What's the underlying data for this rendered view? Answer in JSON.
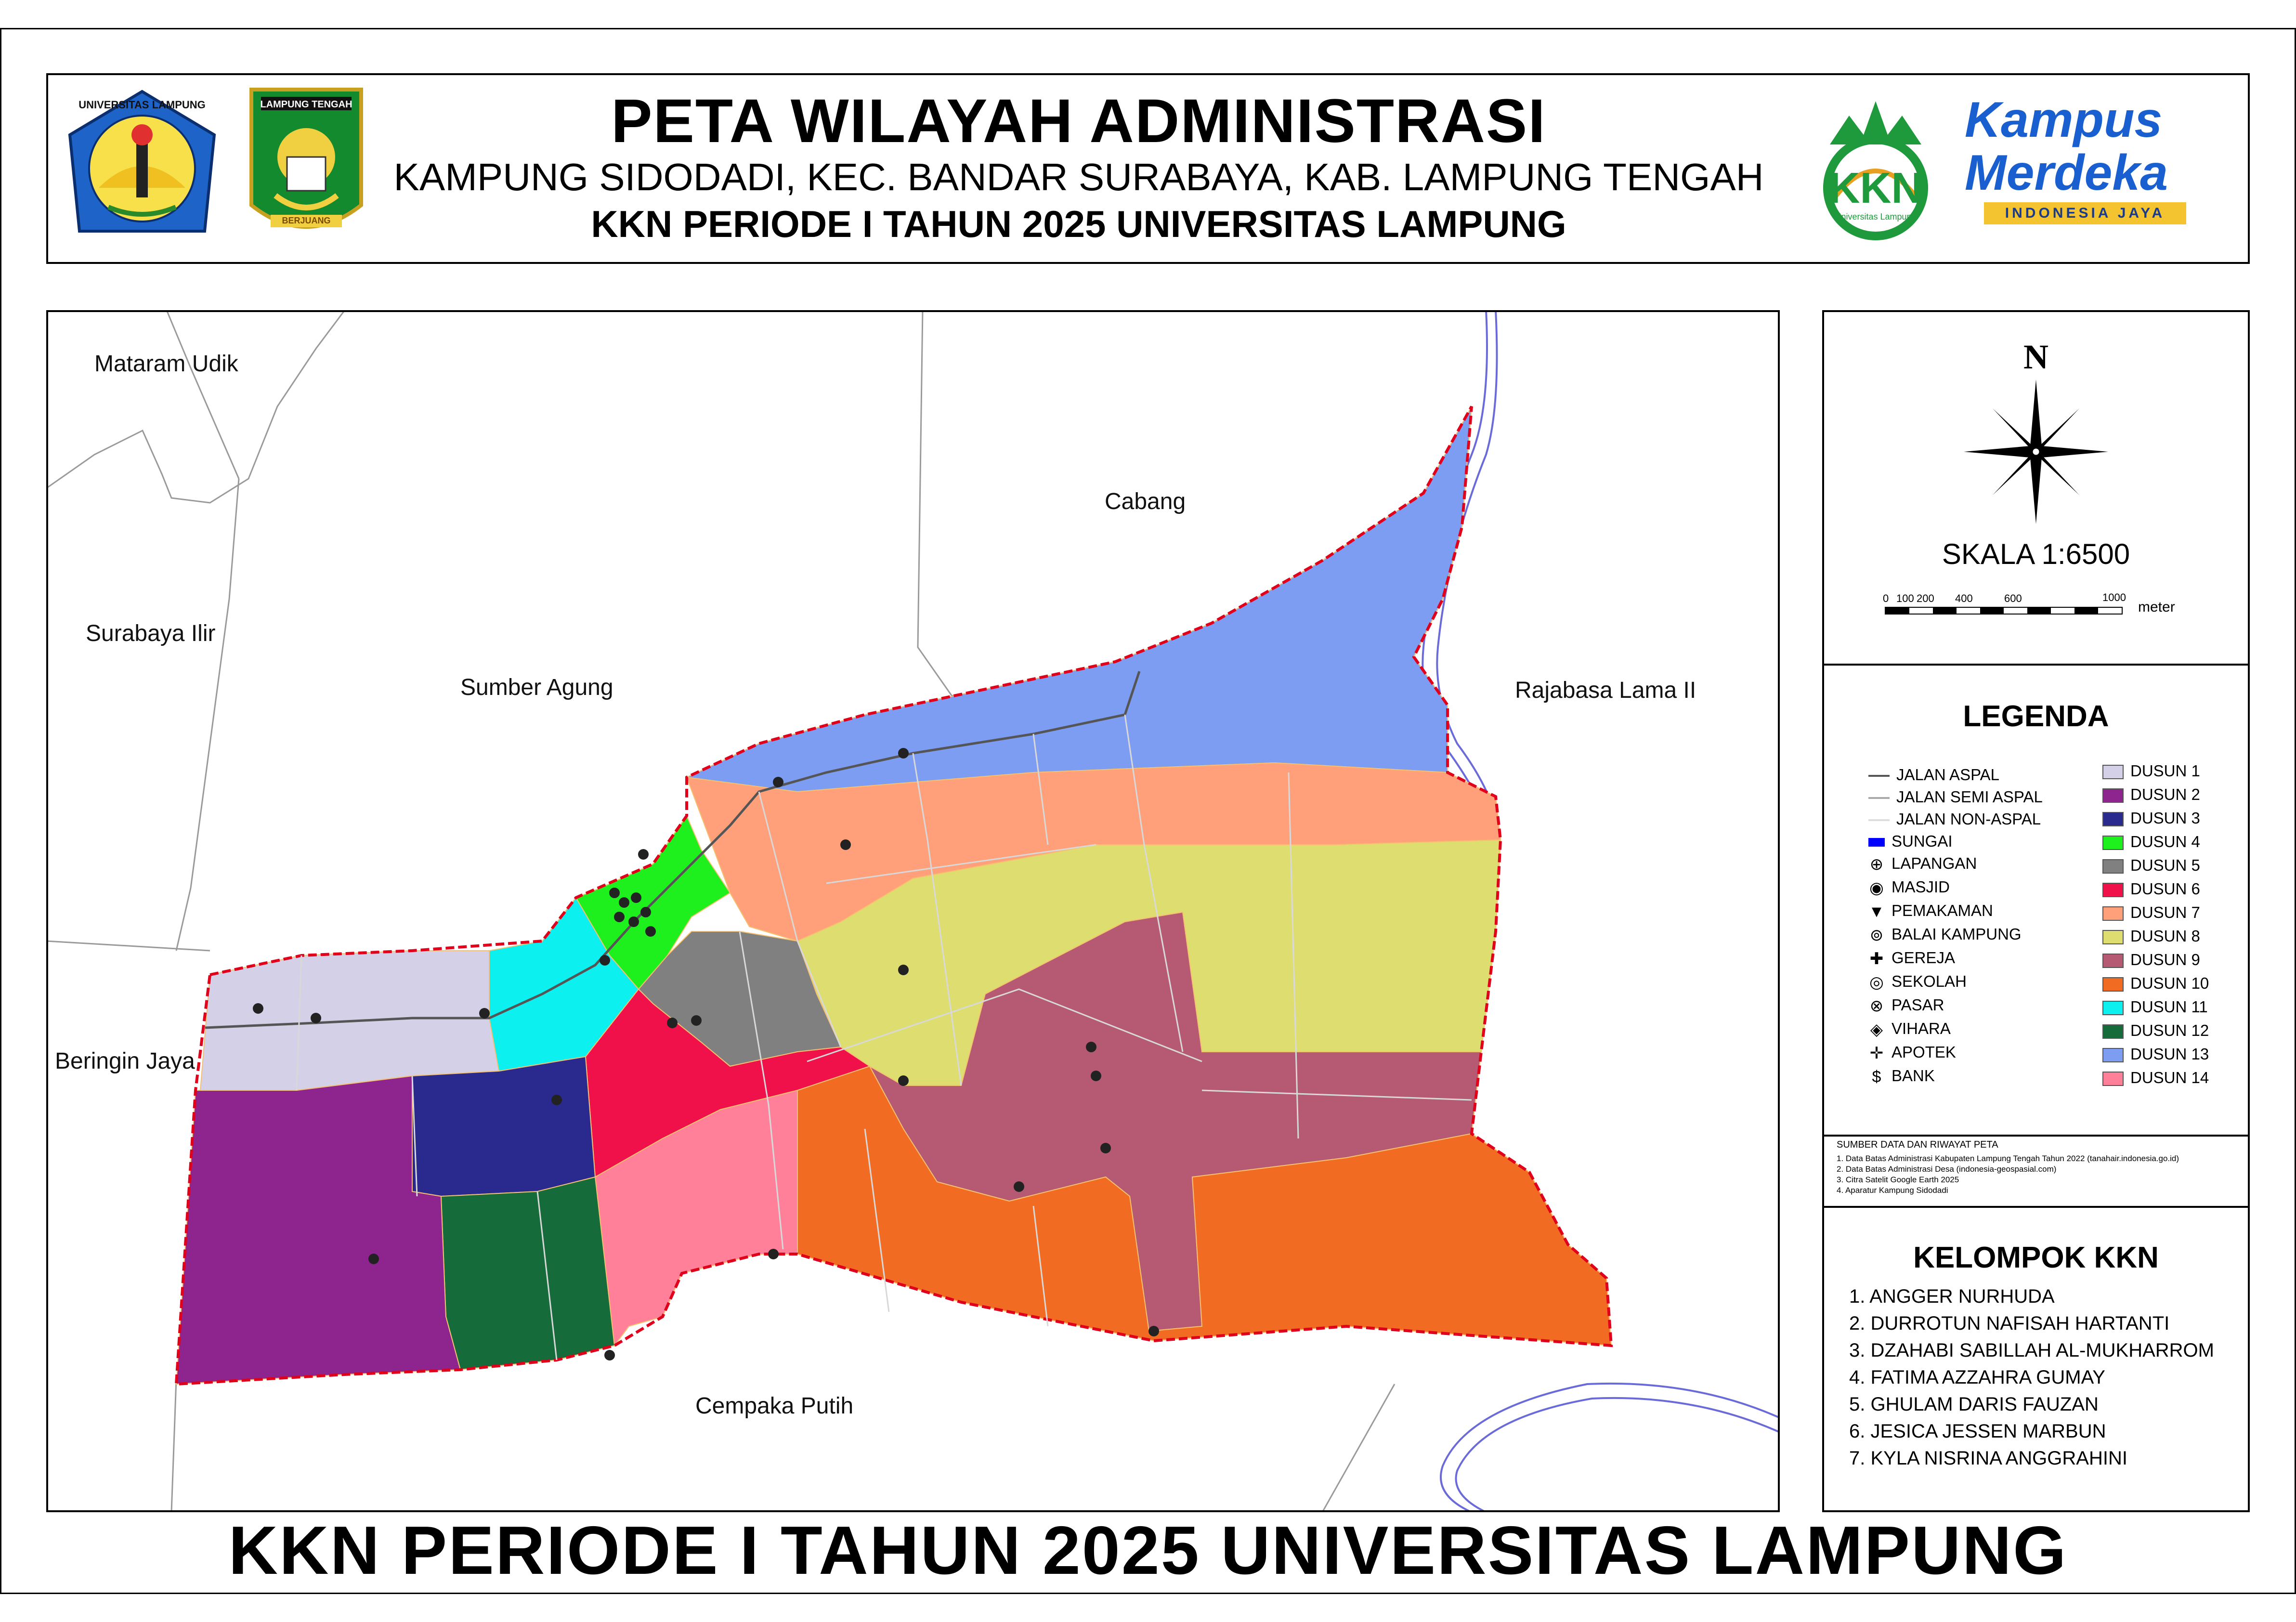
{
  "header": {
    "title": "PETA WILAYAH ADMINISTRASI",
    "subtitle": "KAMPUNG SIDODADI, KEC. BANDAR SURABAYA, KAB. LAMPUNG TENGAH",
    "period": "KKN PERIODE I TAHUN 2025 UNIVERSITAS LAMPUNG",
    "logo_unila_text": "UNIVERSITAS LAMPUNG",
    "logo_lamteng_text": "LAMPUNG TENGAH",
    "logo_lamteng_motto": "BERJUANG",
    "logo_kkn_text": "KKN",
    "logo_kkn_sub": "Universitas Lampung",
    "logo_kampus_line1": "Kampus",
    "logo_kampus_line2": "Merdeka",
    "logo_kampus_tag": "INDONESIA JAYA"
  },
  "map": {
    "neighbors": [
      "Mataram Udik",
      "Surabaya Ilir",
      "Sumber Agung",
      "Cabang",
      "Rajabasa Lama II",
      "Beringin Jaya",
      "Cempaka Putih"
    ],
    "boundary_color": "#e0001b",
    "river_color": "#6a6ad8"
  },
  "north": {
    "label": "N"
  },
  "scale": {
    "label": "SKALA 1:6500",
    "ticks": [
      "0",
      "100",
      "200",
      "400",
      "600",
      "1000"
    ],
    "unit": "meter"
  },
  "legend": {
    "title": "LEGENDA",
    "lines": [
      {
        "label": "JALAN ASPAL",
        "color": "#555555"
      },
      {
        "label": "JALAN SEMI ASPAL",
        "color": "#aaaaaa"
      },
      {
        "label": "JALAN NON-ASPAL",
        "color": "#dddddd"
      },
      {
        "label": "SUNGAI",
        "color": "#0000ff"
      }
    ],
    "points": [
      {
        "label": "LAPANGAN",
        "icon": "field-pin-icon"
      },
      {
        "label": "MASJID",
        "icon": "mosque-pin-icon"
      },
      {
        "label": "PEMAKAMAN",
        "icon": "cemetery-pin-icon"
      },
      {
        "label": "BALAI KAMPUNG",
        "icon": "hall-pin-icon"
      },
      {
        "label": "GEREJA",
        "icon": "church-pin-icon"
      },
      {
        "label": "SEKOLAH",
        "icon": "school-pin-icon"
      },
      {
        "label": "PASAR",
        "icon": "market-pin-icon"
      },
      {
        "label": "VIHARA",
        "icon": "vihara-pin-icon"
      },
      {
        "label": "APOTEK",
        "icon": "pharmacy-pin-icon"
      },
      {
        "label": "BANK",
        "icon": "bank-pin-icon"
      }
    ],
    "dusun": [
      {
        "label": "DUSUN 1",
        "color": "#d4d0e8"
      },
      {
        "label": "DUSUN 2",
        "color": "#8e258e"
      },
      {
        "label": "DUSUN 3",
        "color": "#2a2a8e"
      },
      {
        "label": "DUSUN 4",
        "color": "#1ef01e"
      },
      {
        "label": "DUSUN 5",
        "color": "#808080"
      },
      {
        "label": "DUSUN 6",
        "color": "#f0104a"
      },
      {
        "label": "DUSUN 7",
        "color": "#ffa07a"
      },
      {
        "label": "DUSUN 8",
        "color": "#dede70"
      },
      {
        "label": "DUSUN 9",
        "color": "#b55a72"
      },
      {
        "label": "DUSUN 10",
        "color": "#f26b22"
      },
      {
        "label": "DUSUN 11",
        "color": "#0df0f0"
      },
      {
        "label": "DUSUN 12",
        "color": "#166b3a"
      },
      {
        "label": "DUSUN 13",
        "color": "#7d9df2"
      },
      {
        "label": "DUSUN 14",
        "color": "#ff8098"
      }
    ]
  },
  "sources": {
    "title": "SUMBER DATA DAN RIWAYAT PETA",
    "items": [
      "1.  Data Batas Administrasi Kabupaten Lampung Tengah Tahun 2022 (tanahair.indonesia.go.id)",
      "2.  Data Batas Administrasi Desa (indonesia-geospasial.com)",
      "3.  Citra Satelit Google Earth 2025",
      "4.  Aparatur Kampung Sidodadi"
    ]
  },
  "group": {
    "title": "KELOMPOK KKN",
    "members": [
      "1.  ANGGER NURHUDA",
      "2. DURROTUN NAFISAH HARTANTI",
      "3. DZAHABI SABILLAH AL-MUKHARROM",
      "4. FATIMA AZZAHRA GUMAY",
      "5. GHULAM DARIS FAUZAN",
      "6. JESICA JESSEN MARBUN",
      "7. KYLA NISRINA ANGGRAHINI"
    ]
  },
  "footer": {
    "title": "KKN PERIODE I TAHUN 2025 UNIVERSITAS LAMPUNG"
  }
}
